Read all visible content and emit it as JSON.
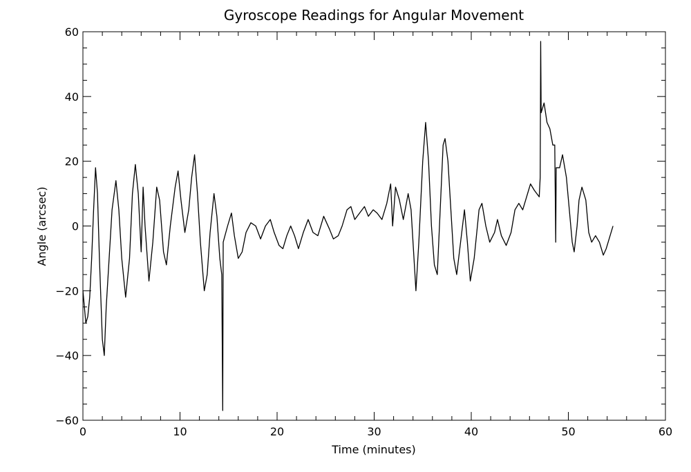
{
  "chart_data": {
    "type": "line",
    "title": "Gyroscope Readings for Angular Movement",
    "xlabel": "Time (minutes)",
    "ylabel": "Angle (arcsec)",
    "color": "#000000",
    "xlim": [
      0,
      60
    ],
    "ylim": [
      -60,
      60
    ],
    "xticks": [
      0,
      10,
      20,
      30,
      40,
      50,
      60
    ],
    "yticks": [
      {
        "value": -60,
        "label": "−60"
      },
      {
        "value": -40,
        "label": "−40"
      },
      {
        "value": -20,
        "label": "−20"
      },
      0,
      20,
      40,
      60
    ],
    "xminorticks": [
      2,
      4,
      6,
      8,
      12,
      14,
      16,
      18,
      22,
      24,
      26,
      28,
      32,
      34,
      36,
      38,
      42,
      44,
      46,
      48,
      52,
      54,
      56,
      58
    ],
    "yminorticks": [
      -55,
      -50,
      -45,
      -35,
      -30,
      -25,
      -15,
      -10,
      -5,
      5,
      10,
      15,
      25,
      30,
      35,
      45,
      50,
      55
    ],
    "x": [
      0,
      0.3,
      0.5,
      0.7,
      0.9,
      1.1,
      1.3,
      1.5,
      1.7,
      2.0,
      2.2,
      2.4,
      2.7,
      3.0,
      3.4,
      3.7,
      4.0,
      4.4,
      4.8,
      5.1,
      5.4,
      5.7,
      6.0,
      6.2,
      6.4,
      6.8,
      7.2,
      7.6,
      7.9,
      8.3,
      8.6,
      9.0,
      9.5,
      9.8,
      10.1,
      10.5,
      10.9,
      11.2,
      11.5,
      11.8,
      12.1,
      12.5,
      12.8,
      13.1,
      13.5,
      13.8,
      14.1,
      14.3,
      14.4,
      14.45,
      14.9,
      15.3,
      15.6,
      16.0,
      16.4,
      16.8,
      17.3,
      17.8,
      18.3,
      18.8,
      19.3,
      19.7,
      20.2,
      20.6,
      21.0,
      21.4,
      21.8,
      22.2,
      22.7,
      23.2,
      23.7,
      24.2,
      24.8,
      25.4,
      25.8,
      26.3,
      26.7,
      27.2,
      27.6,
      28.0,
      28.5,
      29.0,
      29.4,
      29.9,
      30.3,
      30.8,
      31.3,
      31.7,
      31.9,
      32.2,
      32.6,
      33.0,
      33.5,
      33.8,
      34.1,
      34.3,
      34.6,
      35.0,
      35.3,
      35.6,
      35.9,
      36.2,
      36.5,
      36.8,
      37.1,
      37.3,
      37.6,
      37.9,
      38.2,
      38.5,
      38.9,
      39.3,
      39.6,
      39.9,
      40.3,
      40.8,
      41.1,
      41.5,
      41.9,
      42.4,
      42.7,
      43.1,
      43.6,
      44.1,
      44.5,
      44.9,
      45.3,
      45.7,
      46.1,
      46.5,
      47.0,
      47.1,
      47.15,
      47.2,
      47.5,
      47.8,
      48.1,
      48.4,
      48.6,
      48.7,
      48.75,
      49.1,
      49.4,
      49.8,
      50.1,
      50.4,
      50.6,
      50.9,
      51.1,
      51.4,
      51.8,
      52.1,
      52.4,
      52.8,
      53.2,
      53.6,
      53.9,
      54.3,
      54.6
    ],
    "values": [
      -20,
      -30,
      -28,
      -22,
      -10,
      5,
      18,
      10,
      -10,
      -35,
      -40,
      -25,
      -10,
      5,
      14,
      5,
      -10,
      -22,
      -10,
      10,
      19,
      10,
      -8,
      12,
      0,
      -17,
      -5,
      12,
      8,
      -8,
      -12,
      0,
      12,
      17,
      8,
      -2,
      5,
      15,
      22,
      10,
      -5,
      -20,
      -15,
      -2,
      10,
      3,
      -10,
      -15,
      -57,
      -5,
      0,
      4,
      -3,
      -10,
      -8,
      -2,
      1,
      0,
      -4,
      0,
      2,
      -2,
      -6,
      -7,
      -3,
      0,
      -3,
      -7,
      -2,
      2,
      -2,
      -3,
      3,
      -1,
      -4,
      -3,
      0,
      5,
      6,
      2,
      4,
      6,
      3,
      5,
      4,
      2,
      7,
      13,
      0,
      12,
      8,
      2,
      10,
      5,
      -10,
      -20,
      -5,
      20,
      32,
      20,
      0,
      -12,
      -15,
      5,
      25,
      27,
      20,
      5,
      -10,
      -15,
      -5,
      5,
      -5,
      -17,
      -10,
      5,
      7,
      0,
      -5,
      -2,
      2,
      -3,
      -6,
      -2,
      5,
      7,
      5,
      9,
      13,
      11,
      9,
      15,
      57,
      35,
      38,
      32,
      30,
      25,
      25,
      -5,
      18,
      18,
      22,
      15,
      5,
      -5,
      -8,
      0,
      8,
      12,
      8,
      -2,
      -5,
      -3,
      -5,
      -9,
      -7,
      -3,
      0
    ]
  }
}
